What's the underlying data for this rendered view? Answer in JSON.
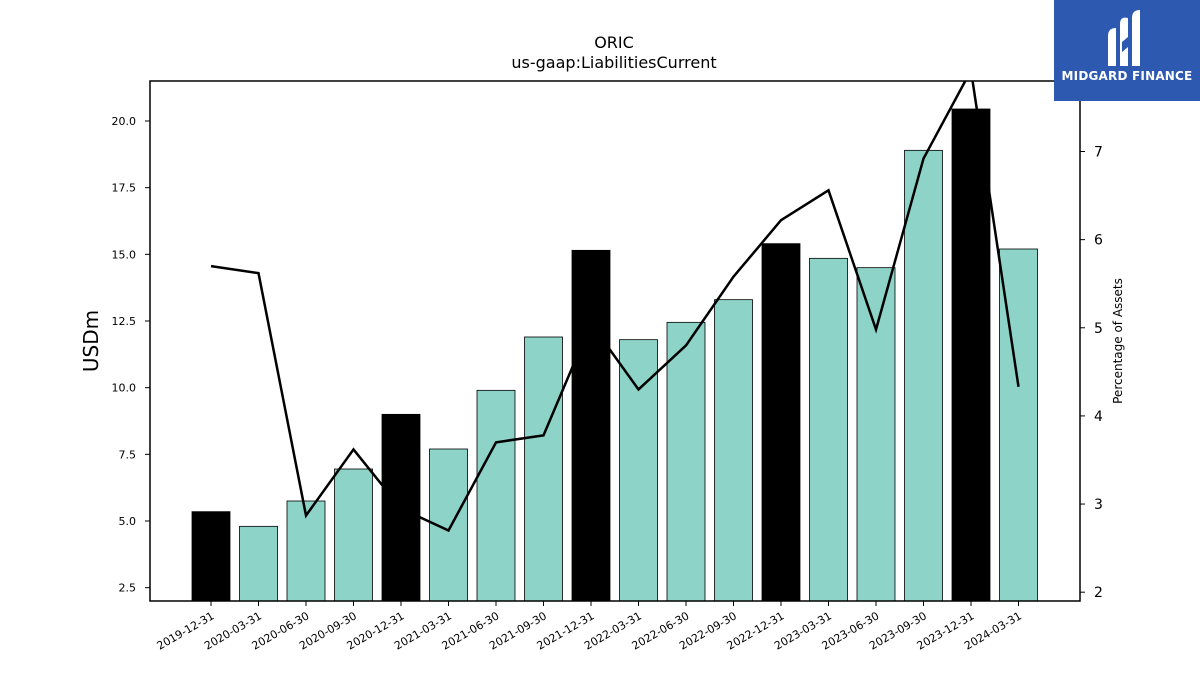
{
  "logo": {
    "text": "MIDGARD FINANCE",
    "bg_color": "#2d5ab0"
  },
  "chart_data": {
    "type": "bar",
    "title": "ORIC",
    "subtitle": "us-gaap:LiabilitiesCurrent",
    "ylabel": "USDm",
    "y2label": "Percentage of Assets",
    "ylim": [
      2.0,
      21.5
    ],
    "y2lim": [
      1.9,
      7.8
    ],
    "yticks": [
      2.5,
      5.0,
      7.5,
      10.0,
      12.5,
      15.0,
      17.5,
      20.0
    ],
    "y2ticks": [
      2,
      3,
      4,
      5,
      6,
      7
    ],
    "grid": false,
    "categories": [
      "2019-12-31",
      "2020-03-31",
      "2020-06-30",
      "2020-09-30",
      "2020-12-31",
      "2021-03-31",
      "2021-06-30",
      "2021-09-30",
      "2021-12-31",
      "2022-03-31",
      "2022-06-30",
      "2022-09-30",
      "2022-12-31",
      "2023-03-31",
      "2023-06-30",
      "2023-09-30",
      "2023-12-31",
      "2024-03-31"
    ],
    "series": [
      {
        "type": "bar",
        "values": [
          5.35,
          4.8,
          5.75,
          6.95,
          9.0,
          7.7,
          9.9,
          11.9,
          15.15,
          11.8,
          12.45,
          13.3,
          15.4,
          14.85,
          14.5,
          18.9,
          20.45,
          15.2
        ],
        "highlight": [
          true,
          false,
          false,
          false,
          true,
          false,
          false,
          false,
          true,
          false,
          false,
          false,
          true,
          false,
          false,
          false,
          true,
          false
        ],
        "color": "#8dd3c7",
        "highlight_color": "#000000"
      },
      {
        "type": "line",
        "axis": "right",
        "values": [
          5.7,
          5.62,
          2.87,
          3.62,
          2.95,
          2.7,
          3.7,
          3.78,
          5.05,
          4.3,
          4.8,
          5.58,
          6.22,
          6.56,
          4.98,
          6.92,
          7.92,
          4.33
        ],
        "color": "#000000"
      }
    ]
  }
}
